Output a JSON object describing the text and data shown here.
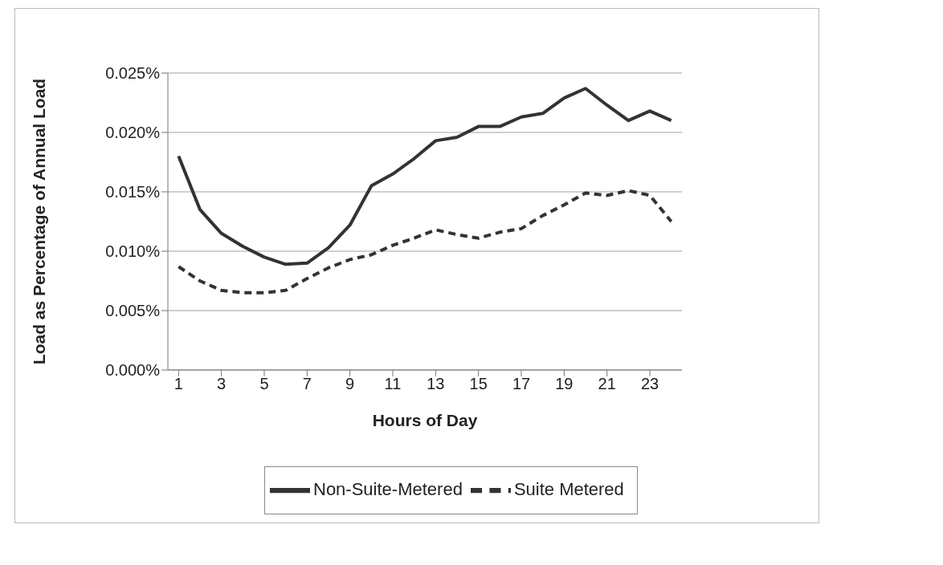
{
  "chart_data": {
    "type": "line",
    "xlabel": "Hours of Day",
    "ylabel": "Load as Percentage of Annual Load",
    "x": [
      1,
      2,
      3,
      4,
      5,
      6,
      7,
      8,
      9,
      10,
      11,
      12,
      13,
      14,
      15,
      16,
      17,
      18,
      19,
      20,
      21,
      22,
      23,
      24
    ],
    "xlim": [
      0.5,
      24.5
    ],
    "xticks": [
      1,
      3,
      5,
      7,
      9,
      11,
      13,
      15,
      17,
      19,
      21,
      23
    ],
    "ylim": [
      0,
      0.025
    ],
    "yticks": [
      {
        "value": 0,
        "label": "0.000%"
      },
      {
        "value": 0.005,
        "label": "0.005%"
      },
      {
        "value": 0.01,
        "label": "0.010%"
      },
      {
        "value": 0.015,
        "label": "0.015%"
      },
      {
        "value": 0.02,
        "label": "0.020%"
      },
      {
        "value": 0.025,
        "label": "0.025%"
      }
    ],
    "grid": "y",
    "legend": "bottom",
    "marker": "none",
    "series": [
      {
        "name": "Non-Suite-Metered",
        "color": "#333333",
        "line_style": "solid",
        "values": [
          0.018,
          0.0135,
          0.0115,
          0.0104,
          0.0095,
          0.0089,
          0.009,
          0.0103,
          0.0122,
          0.0155,
          0.0165,
          0.0178,
          0.0193,
          0.0196,
          0.0205,
          0.0205,
          0.0213,
          0.0216,
          0.0229,
          0.0237,
          0.0223,
          0.021,
          0.0218,
          0.021
        ]
      },
      {
        "name": "Suite Metered",
        "color": "#333333",
        "line_style": "dashed",
        "values": [
          0.0087,
          0.0075,
          0.0067,
          0.0065,
          0.0065,
          0.0067,
          0.0077,
          0.0086,
          0.0093,
          0.0097,
          0.0105,
          0.0111,
          0.0118,
          0.0114,
          0.0111,
          0.0116,
          0.0119,
          0.013,
          0.0139,
          0.0149,
          0.0147,
          0.0151,
          0.0147,
          0.0125
        ]
      }
    ]
  }
}
